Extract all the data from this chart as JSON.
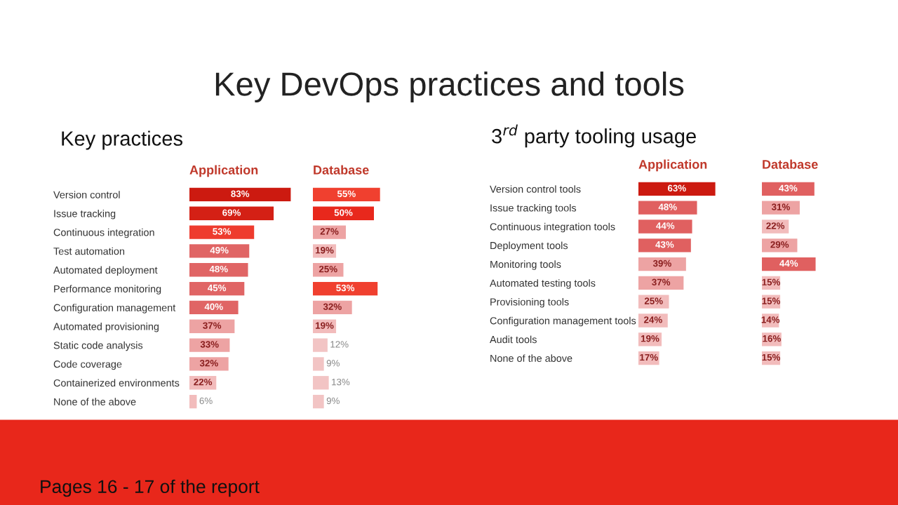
{
  "chart_data": [
    {
      "type": "bar",
      "orientation": "horizontal",
      "title": "Key practices",
      "annotations": [
        "Key DevOps practices and tools",
        "Pages 16 - 17 of the report"
      ],
      "categories": [
        "Version control",
        "Issue tracking",
        "Continuous integration",
        "Test automation",
        "Automated deployment",
        "Performance monitoring",
        "Configuration management",
        "Automated provisioning",
        "Static code analysis",
        "Code coverage",
        "Containerized environments",
        "None of the above"
      ],
      "series": [
        {
          "name": "Application",
          "values": [
            83,
            69,
            53,
            49,
            48,
            45,
            40,
            37,
            33,
            32,
            22,
            6
          ],
          "value_labels": [
            "83%",
            "69%",
            "53%",
            "49%",
            "48%",
            "45%",
            "40%",
            "37%",
            "33%",
            "32%",
            "22%",
            "6%"
          ],
          "colors": [
            "#cc1a10",
            "#d42015",
            "#ee3b2e",
            "#e06565",
            "#e06565",
            "#e06565",
            "#e06565",
            "#eda3a3",
            "#eda3a3",
            "#eda3a3",
            "#f2bcbc",
            "#f2bcbc"
          ]
        }
      ]
    },
    {
      "type": "bar",
      "orientation": "horizontal",
      "categories": [
        null,
        null,
        null,
        null,
        null,
        null,
        null,
        null,
        null,
        null,
        null,
        null
      ],
      "series": [
        {
          "name": "Database",
          "values": [
            55,
            50,
            27,
            19,
            25,
            53,
            32,
            19,
            12,
            9,
            13,
            9
          ],
          "value_labels": [
            "55%",
            "50%",
            "27%",
            "19%",
            "25%",
            "53%",
            "32%",
            "19%",
            "12%",
            "9%",
            "13%",
            "9%"
          ],
          "colors": [
            "#f0402f",
            "#e8281c",
            "#eda3a3",
            "#f2bcbc",
            "#eda3a3",
            "#f0402f",
            "#eda3a3",
            "#f2bcbc",
            "#f2c4c4",
            "#f2c4c4",
            "#f2c4c4",
            "#f2c4c4"
          ]
        }
      ]
    },
    {
      "type": "bar",
      "orientation": "horizontal",
      "title": "3$^{rd}$ party tooling usage",
      "categories": [
        "Version control tools",
        "Issue tracking tools",
        "Continuous integration tools",
        "Deployment tools",
        "Monitoring tools",
        "Automated testing tools",
        "Provisioning tools",
        "Configuration management tools",
        "Audit tools",
        "None of the above"
      ],
      "series": [
        {
          "name": "Application",
          "values": [
            63,
            48,
            44,
            43,
            39,
            37,
            25,
            24,
            19,
            17
          ],
          "value_labels": [
            "63%",
            "48%",
            "44%",
            "43%",
            "39%",
            "37%",
            "25%",
            "24%",
            "19%",
            "17%"
          ],
          "colors": [
            "#cc1a10",
            "#e06060",
            "#e06060",
            "#e06060",
            "#eda3a3",
            "#eda3a3",
            "#f2bcbc",
            "#f2bcbc",
            "#f2bcbc",
            "#f2bcbc"
          ]
        }
      ]
    },
    {
      "type": "bar",
      "orientation": "horizontal",
      "categories": [
        null,
        null,
        null,
        null,
        null,
        null,
        null,
        null,
        null,
        null
      ],
      "series": [
        {
          "name": "Database",
          "values": [
            43,
            31,
            22,
            29,
            44,
            15,
            15,
            14,
            16,
            15
          ],
          "value_labels": [
            "43%",
            "31%",
            "22%",
            "29%",
            "44%",
            "15%",
            "15%",
            "14%",
            "16%",
            "15%"
          ],
          "colors": [
            "#e06060",
            "#eda3a3",
            "#f2bcbc",
            "#eda3a3",
            "#e06060",
            "#f2bcbc",
            "#f2bcbc",
            "#f2bcbc",
            "#f2bcbc",
            "#f2bcbc"
          ]
        }
      ]
    }
  ]
}
